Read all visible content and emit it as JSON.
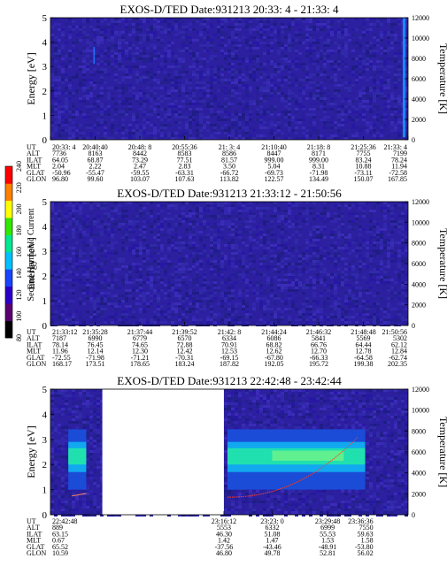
{
  "colorbar": {
    "label": "Second Harmonic Current",
    "ticks": [
      "80",
      "100",
      "120",
      "140",
      "160",
      "180",
      "200",
      "220",
      "240"
    ],
    "range": [
      80,
      240
    ],
    "colors": [
      "#000000",
      "#5a0070",
      "#2a00c8",
      "#1844ff",
      "#00c0ff",
      "#00e890",
      "#30e800",
      "#ffff00",
      "#ff8000",
      "#ff0000"
    ]
  },
  "chart_data": [
    {
      "type": "heatmap",
      "title": "EXOS-D/TED   Date:931213  20:33: 4 - 21:33: 4",
      "ylabel": "Energy [eV]",
      "y2label": "Temperature [K]",
      "ylim": [
        0,
        5
      ],
      "y2lim": [
        0,
        12000
      ],
      "yticks": [
        "0",
        "1",
        "2",
        "3",
        "4",
        "5"
      ],
      "y2ticks": [
        "0",
        "2000",
        "4000",
        "6000",
        "8000",
        "10000",
        "12000"
      ],
      "background": "#2c20a0",
      "streaks": [
        {
          "x": 0.12,
          "w": 0.004,
          "from": 3.1,
          "to": 3.8,
          "color": "#1f78ff"
        },
        {
          "x": 0.985,
          "w": 0.008,
          "from": 0.1,
          "to": 5.0,
          "color": "#1a90ff"
        }
      ],
      "gaps": [],
      "row_labels": [
        "UT",
        "ALT",
        "ILAT",
        "MLT",
        "GLAT",
        "GLON"
      ],
      "columns": [
        [
          "20:33: 4",
          "7736",
          "64.05",
          "2.04",
          "-50.96",
          "96.80"
        ],
        [
          "20:40:40",
          "8163",
          "68.87",
          "2.22",
          "-55.47",
          "99.60"
        ],
        [
          "20:48: 8",
          "8442",
          "73.29",
          "2.47",
          "-59.55",
          "103.07"
        ],
        [
          "20:55:36",
          "8583",
          "77.51",
          "2.83",
          "-63.31",
          "107.63"
        ],
        [
          "21: 3: 4",
          "8586",
          "81.57",
          "3.50",
          "-66.72",
          "113.82"
        ],
        [
          "21:10:40",
          "8447",
          "999.00",
          "5.04",
          "-69.73",
          "122.57"
        ],
        [
          "21:18: 8",
          "8171",
          "999.00",
          "8.31",
          "-71.98",
          "134.49"
        ],
        [
          "21:25:36",
          "7755",
          "83.24",
          "10.88",
          "-73.11",
          "150.07"
        ],
        [
          "21:33: 4",
          "7199",
          "78.24",
          "11.94",
          "-72.58",
          "167.85"
        ]
      ]
    },
    {
      "type": "heatmap",
      "title": "EXOS-D/TED   Date:931213  21:33:12 - 21:50:56",
      "ylabel": "Energy [eV]",
      "y2label": "Temperature [K]",
      "ylim": [
        0,
        5
      ],
      "y2lim": [
        0,
        12000
      ],
      "yticks": [
        "0",
        "1",
        "2",
        "3",
        "4",
        "5"
      ],
      "y2ticks": [
        "0",
        "2000",
        "4000",
        "6000",
        "8000",
        "10000",
        "12000"
      ],
      "background": "#2c20a0",
      "streaks": [],
      "gaps": [],
      "row_labels": [
        "UT",
        "ALT",
        "ILAT",
        "MLT",
        "GLAT",
        "GLON"
      ],
      "columns": [
        [
          "21:33:12",
          "7187",
          "78.14",
          "11.96",
          "-72.55",
          "168.17"
        ],
        [
          "21:35:28",
          "6990",
          "76.45",
          "12.14",
          "-71.98",
          "173.51"
        ],
        [
          "21:37:44",
          "6779",
          "74.65",
          "12.30",
          "-71.21",
          "178.65"
        ],
        [
          "21:39:52",
          "6570",
          "72.88",
          "12.42",
          "-70.31",
          "183.24"
        ],
        [
          "21:42: 8",
          "6334",
          "70.91",
          "12.53",
          "-69.15",
          "187.82"
        ],
        [
          "21:44:24",
          "6086",
          "68.82",
          "12.62",
          "-67.80",
          "192.05"
        ],
        [
          "21:46:32",
          "5841",
          "66.76",
          "12.70",
          "-66.33",
          "195.72"
        ],
        [
          "21:48:48",
          "5569",
          "64.44",
          "12.78",
          "-64.58",
          "199.38"
        ],
        [
          "21:50:56",
          "5302",
          "62.12",
          "12.84",
          "-62.74",
          "202.35"
        ]
      ]
    },
    {
      "type": "heatmap",
      "title": "EXOS-D/TED   Date:931213  22:42:48 - 23:42:44",
      "ylabel": "Energy [eV]",
      "y2label": "Temperature [K]",
      "ylim": [
        0,
        5
      ],
      "y2lim": [
        0,
        12000
      ],
      "yticks": [
        "0",
        "1",
        "2",
        "3",
        "4",
        "5"
      ],
      "y2ticks": [
        "0",
        "2000",
        "4000",
        "6000",
        "8000",
        "10000",
        "12000"
      ],
      "background": "#2c20a0",
      "streaks": [],
      "gaps": [
        [
          0.145,
          0.485
        ]
      ],
      "row_labels": [
        "UT",
        "ALT",
        "ILAT",
        "MLT",
        "GLAT",
        "GLON"
      ],
      "columns": [
        [
          "22:42:48",
          "889",
          "63.15",
          "0.67",
          "65.52",
          "10.59"
        ],
        [
          "23:16:12",
          "5553",
          "46.30",
          "1.42",
          "-37.56",
          "46.80"
        ],
        [
          "23:23: 0",
          "6332",
          "51.08",
          "1.47",
          "-43.46",
          "49.78"
        ],
        [
          "23:29:48",
          "6999",
          "55.53",
          "1.53",
          "-48.91",
          "52.81"
        ],
        [
          "23:36:36",
          "7550",
          "59.63",
          "1.58",
          "-53.80",
          "56.02"
        ]
      ]
    }
  ]
}
